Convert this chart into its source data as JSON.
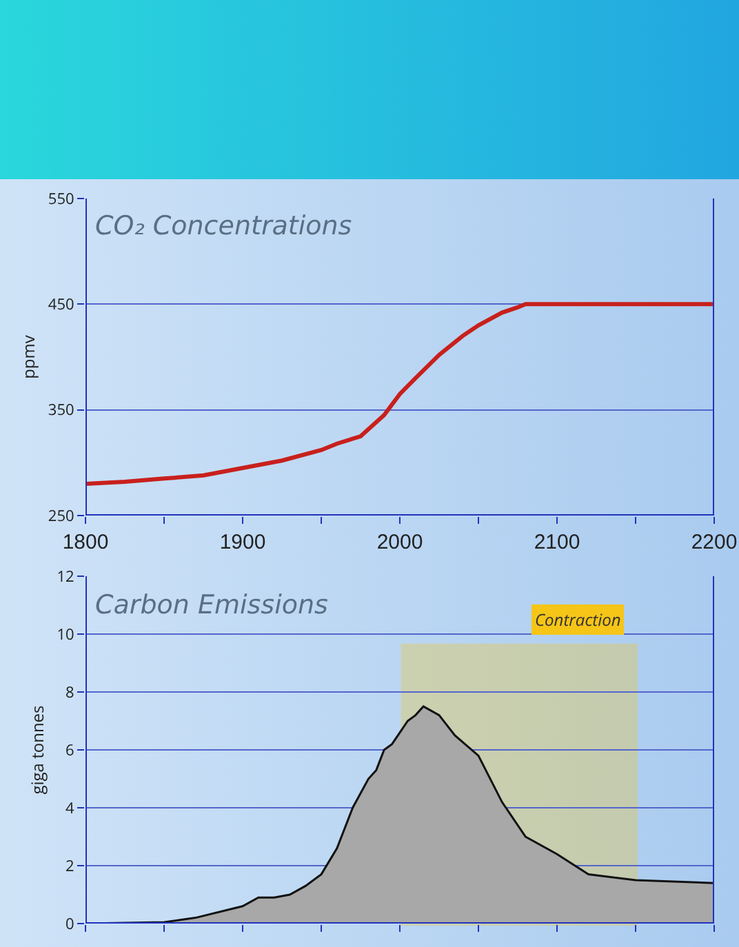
{
  "chart_data": [
    {
      "type": "line",
      "title": "CO₂ Concentrations",
      "ylabel": "ppmv",
      "x": [
        1800,
        1825,
        1850,
        1875,
        1900,
        1925,
        1950,
        1960,
        1975,
        1990,
        2000,
        2010,
        2025,
        2040,
        2050,
        2065,
        2075,
        2080,
        2100,
        2150,
        2200
      ],
      "series": [
        {
          "color": "#c8201c",
          "values": [
            280,
            282,
            285,
            288,
            295,
            302,
            312,
            318,
            325,
            345,
            365,
            380,
            402,
            420,
            430,
            442,
            447,
            450,
            450,
            450,
            450
          ]
        }
      ],
      "xlim": [
        1800,
        2200
      ],
      "xticks": [
        1800,
        {
          "value": 1850,
          "label": null
        },
        1900,
        {
          "value": 1950,
          "label": null
        },
        2000,
        {
          "value": 2050,
          "label": null
        },
        2100,
        {
          "value": 2150,
          "label": null
        },
        2200
      ],
      "ylim": [
        250,
        550
      ],
      "yticks": [
        250,
        350,
        450,
        550
      ],
      "grid": "y",
      "marker": "none",
      "line_style": "solid"
    },
    {
      "type": "area",
      "title": "Carbon Emissions",
      "ylabel": "giga tonnes",
      "x": [
        1800,
        1850,
        1870,
        1900,
        1910,
        1920,
        1930,
        1940,
        1950,
        1960,
        1970,
        1980,
        1985,
        1990,
        1995,
        2000,
        2005,
        2010,
        2015,
        2025,
        2035,
        2050,
        2065,
        2080,
        2100,
        2120,
        2150,
        2200
      ],
      "series": [
        {
          "color": "#a8a8a8",
          "values": [
            0,
            0.05,
            0.2,
            0.6,
            0.9,
            0.9,
            1.0,
            1.3,
            1.7,
            2.6,
            4.0,
            5.0,
            5.3,
            6.0,
            6.2,
            6.6,
            7.0,
            7.2,
            7.5,
            7.2,
            6.5,
            5.8,
            4.2,
            3.0,
            2.4,
            1.7,
            1.5,
            1.4
          ]
        }
      ],
      "xlim": [
        1800,
        2200
      ],
      "xticks": [
        1800,
        {
          "value": 1850,
          "label": null
        },
        1900,
        {
          "value": 1950,
          "label": null
        },
        2000,
        {
          "value": 2050,
          "label": null
        },
        2100,
        {
          "value": 2150,
          "label": null
        },
        2200
      ],
      "ylim": [
        0,
        12
      ],
      "yticks": [
        0,
        2,
        4,
        6,
        8,
        10,
        12
      ],
      "grid": "y",
      "tick_labels": "y",
      "bands": [
        {
          "axis": "x",
          "from": 2002,
          "to": 2150,
          "label": "Contraction",
          "color": "#f5c518"
        }
      ]
    }
  ]
}
